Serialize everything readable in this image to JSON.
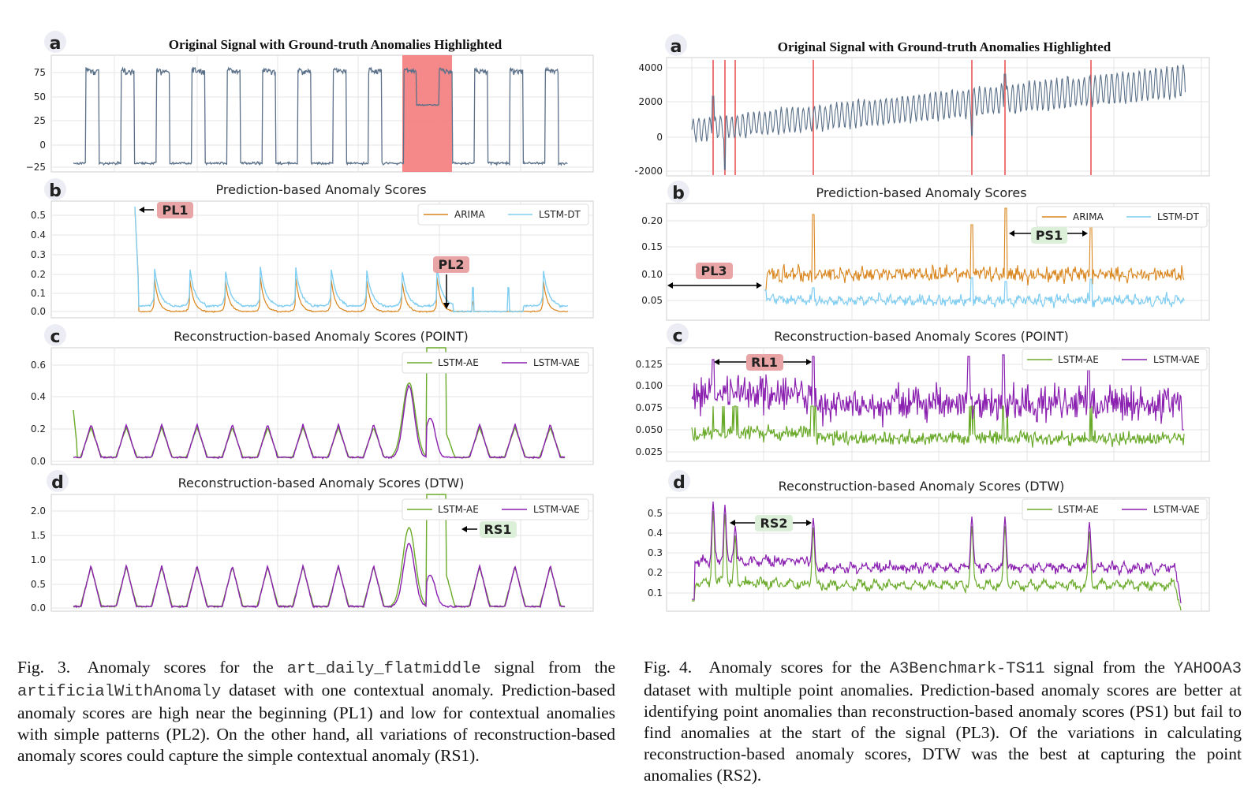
{
  "colors": {
    "signal": "#5a7089",
    "arima": "#d9851c",
    "lstm_dt": "#7fcdf1",
    "lstm_ae": "#6aaa2a",
    "lstm_vae": "#8a1fb0",
    "anomaly_fill": "#f47c7c",
    "anomaly_line": "#e84a4a",
    "label_red_bg": "#e9a5a5",
    "label_green_bg": "#dcefd8",
    "panel_badge": "#ececf4"
  },
  "fig3": {
    "panels": {
      "a": {
        "letter": "a",
        "title": "Original Signal with Ground-truth Anomalies Highlighted",
        "yticks": [
          "75",
          "50",
          "25",
          "0",
          "−25"
        ]
      },
      "b": {
        "letter": "b",
        "title": "Prediction-based Anomaly Scores",
        "yticks": [
          "0.5",
          "0.4",
          "0.3",
          "0.2",
          "0.1",
          "0.0"
        ],
        "legend": [
          "ARIMA",
          "LSTM-DT"
        ]
      },
      "c": {
        "letter": "c",
        "title": "Reconstruction-based Anomaly Scores (POINT)",
        "yticks": [
          "0.6",
          "0.4",
          "0.2",
          "0.0"
        ],
        "legend": [
          "LSTM-AE",
          "LSTM-VAE"
        ]
      },
      "d": {
        "letter": "d",
        "title": "Reconstruction-based Anomaly Scores (DTW)",
        "yticks": [
          "2.0",
          "1.5",
          "1.0",
          "0.5",
          "0.0"
        ],
        "legend": [
          "LSTM-AE",
          "LSTM-VAE"
        ]
      }
    },
    "annotations": {
      "pl1": "PL1",
      "pl2": "PL2",
      "rs1": "RS1"
    },
    "caption": {
      "p1": "Fig. 3. Anomaly scores for the ",
      "code1": "art_daily_flatmiddle",
      "p2": " signal from the ",
      "code2": "artificialWithAnomaly",
      "p3": " dataset with one contextual anomaly. Prediction-based anomaly scores are high near the beginning (PL1) and low for contextual anomalies with simple patterns (PL2). On the other hand, all variations of reconstruction-based anomaly scores could capture the simple contextual anomaly (RS1)."
    }
  },
  "fig4": {
    "panels": {
      "a": {
        "letter": "a",
        "title": "Original Signal with Ground-truth Anomalies Highlighted",
        "yticks": [
          "4000",
          "2000",
          "0",
          "−2000"
        ]
      },
      "b": {
        "letter": "b",
        "title": "Prediction-based Anomaly Scores",
        "yticks": [
          "0.20",
          "0.15",
          "0.10",
          "0.05"
        ],
        "legend": [
          "ARIMA",
          "LSTM-DT"
        ]
      },
      "c": {
        "letter": "c",
        "title": "Reconstruction-based Anomaly Scores (POINT)",
        "yticks": [
          "0.125",
          "0.100",
          "0.075",
          "0.050",
          "0.025"
        ],
        "legend": [
          "LSTM-AE",
          "LSTM-VAE"
        ]
      },
      "d": {
        "letter": "d",
        "title": "Reconstruction-based Anomaly Scores (DTW)",
        "yticks": [
          "0.5",
          "0.4",
          "0.3",
          "0.2",
          "0.1"
        ],
        "legend": [
          "LSTM-AE",
          "LSTM-VAE"
        ]
      }
    },
    "annotations": {
      "pl3": "PL3",
      "ps1": "PS1",
      "rl1": "RL1",
      "rs2": "RS2"
    },
    "caption": {
      "p1": "Fig. 4. Anomaly scores for the ",
      "code1": "A3Benchmark-TS11",
      "p2": " signal from the ",
      "code2": "YAHOOA3",
      "p3": " dataset with multiple point anomalies. Prediction-based anomaly scores are better at identifying point anomalies than reconstruction-based anomaly scores (PS1) but fail to find anomalies at the start of the signal (PL3). Of the variations in calculating reconstruction-based anomaly scores, DTW was the best at capturing the point anomalies (RS2)."
    }
  }
}
